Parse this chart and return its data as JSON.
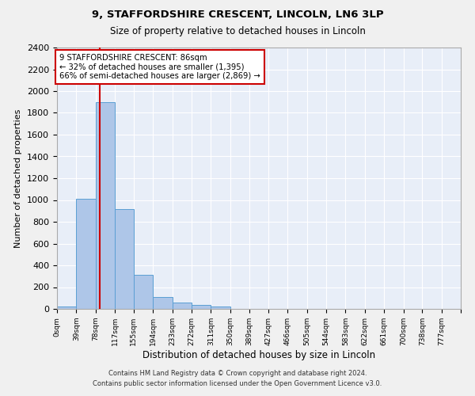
{
  "title": "9, STAFFORDSHIRE CRESCENT, LINCOLN, LN6 3LP",
  "subtitle": "Size of property relative to detached houses in Lincoln",
  "xlabel": "Distribution of detached houses by size in Lincoln",
  "ylabel": "Number of detached properties",
  "bar_color": "#aec6e8",
  "bar_edge_color": "#5a9fd4",
  "background_color": "#e8eef8",
  "grid_color": "#ffffff",
  "annotation_box_color": "#cc0000",
  "property_line_color": "#cc0000",
  "property_value": 86,
  "annotation_text_line1": "9 STAFFORDSHIRE CRESCENT: 86sqm",
  "annotation_text_line2": "← 32% of detached houses are smaller (1,395)",
  "annotation_text_line3": "66% of semi-detached houses are larger (2,869) →",
  "footer_line1": "Contains HM Land Registry data © Crown copyright and database right 2024.",
  "footer_line2": "Contains public sector information licensed under the Open Government Licence v3.0.",
  "bin_labels": [
    "0sqm",
    "39sqm",
    "78sqm",
    "117sqm",
    "155sqm",
    "194sqm",
    "233sqm",
    "272sqm",
    "311sqm",
    "350sqm",
    "389sqm",
    "427sqm",
    "466sqm",
    "505sqm",
    "544sqm",
    "583sqm",
    "622sqm",
    "661sqm",
    "700sqm",
    "738sqm",
    "777sqm"
  ],
  "bin_edges": [
    0,
    39,
    78,
    117,
    155,
    194,
    233,
    272,
    311,
    350,
    389,
    427,
    466,
    505,
    544,
    583,
    622,
    661,
    700,
    738,
    777
  ],
  "bar_heights": [
    20,
    1010,
    1900,
    920,
    315,
    110,
    55,
    35,
    20,
    0,
    0,
    0,
    0,
    0,
    0,
    0,
    0,
    0,
    0,
    0
  ],
  "ylim": [
    0,
    2400
  ],
  "yticks": [
    0,
    200,
    400,
    600,
    800,
    1000,
    1200,
    1400,
    1600,
    1800,
    2000,
    2200,
    2400
  ],
  "figsize": [
    6.0,
    5.0
  ],
  "dpi": 100
}
